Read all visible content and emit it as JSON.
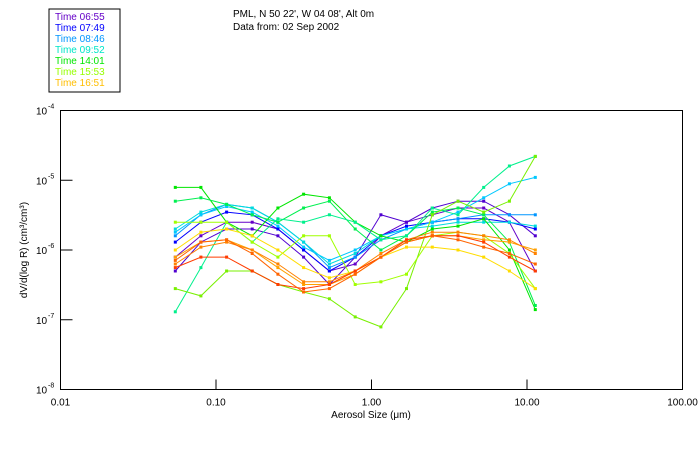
{
  "chart_data": {
    "type": "line",
    "title_lines": [
      "PML, N 50 22', W 04 08', Alt 0m",
      "Data from: 02 Sep 2002"
    ],
    "xlabel": "Aerosol Size (μm)",
    "ylabel": "dV/d(log R) (cm³/cm³)",
    "x_scale": "log",
    "y_scale": "log",
    "xlim": [
      0.01,
      100
    ],
    "ylim": [
      1e-08,
      0.0001
    ],
    "x_ticks": [
      {
        "value": 0.01,
        "label": "0.01"
      },
      {
        "value": 0.1,
        "label": "0.10"
      },
      {
        "value": 1,
        "label": "1.00"
      },
      {
        "value": 10,
        "label": "10.00"
      },
      {
        "value": 100,
        "label": "100.00"
      }
    ],
    "y_ticks": [
      {
        "value": 0.0001,
        "base": "10",
        "exp": "-4"
      },
      {
        "value": 1e-05,
        "base": "10",
        "exp": "-5"
      },
      {
        "value": 1e-06,
        "base": "10",
        "exp": "-6"
      },
      {
        "value": 1e-07,
        "base": "10",
        "exp": "-7"
      },
      {
        "value": 1e-08,
        "base": "10",
        "exp": "-8"
      }
    ],
    "legend": [
      {
        "label": "Time 06:55",
        "color": "#6400c8"
      },
      {
        "label": "Time 07:49",
        "color": "#0000ff"
      },
      {
        "label": "Time 08:46",
        "color": "#0096ff"
      },
      {
        "label": "Time 09:52",
        "color": "#00e6c8"
      },
      {
        "label": "Time 14:01",
        "color": "#00e600"
      },
      {
        "label": "Time 15:53",
        "color": "#96ff00"
      },
      {
        "label": "Time 16:51",
        "color": "#ffbe00"
      }
    ],
    "legend_position": "top-left",
    "x": [
      0.0547,
      0.08,
      0.117,
      0.171,
      0.25,
      0.366,
      0.536,
      0.785,
      1.15,
      1.68,
      2.46,
      3.6,
      5.27,
      7.71,
      11.3
    ],
    "series": [
      {
        "color": "#6400c8",
        "values": [
          7.9e-07,
          1.6e-06,
          2.5e-06,
          2.5e-06,
          2e-06,
          1e-06,
          5e-07,
          6.3e-07,
          1.6e-06,
          2.5e-06,
          3.2e-06,
          4e-06,
          4e-06,
          2.5e-06,
          5e-07
        ]
      },
      {
        "color": "#5000d0",
        "values": [
          5e-07,
          1.3e-06,
          2e-06,
          2e-06,
          1.6e-06,
          7.9e-07,
          3.2e-07,
          7.9e-07,
          3.2e-06,
          2.5e-06,
          4e-06,
          5e-06,
          5e-06,
          3.2e-06,
          1.6e-06
        ]
      },
      {
        "color": "#0000ff",
        "values": [
          1.3e-06,
          2.5e-06,
          3.5e-06,
          3.2e-06,
          2e-06,
          1e-06,
          5e-07,
          7.9e-07,
          1.6e-06,
          2.2e-06,
          2.5e-06,
          2.8e-06,
          2.8e-06,
          2.5e-06,
          2e-06
        ]
      },
      {
        "color": "#0096ff",
        "values": [
          1.6e-06,
          3.2e-06,
          4.5e-06,
          4e-06,
          2.5e-06,
          1.3e-06,
          5.6e-07,
          7.9e-07,
          1.4e-06,
          2e-06,
          2.5e-06,
          2.8e-06,
          3.2e-06,
          3.2e-06,
          3.2e-06
        ]
      },
      {
        "color": "#00dcdc",
        "values": [
          2e-06,
          3.5e-06,
          4.5e-06,
          4e-06,
          2.5e-06,
          1.3e-06,
          6.3e-07,
          8.9e-07,
          1.6e-06,
          2e-06,
          2.2e-06,
          2.5e-06,
          2.5e-06,
          2.5e-06,
          2.2e-06
        ]
      },
      {
        "color": "#00c8ff",
        "values": [
          1.8e-06,
          3.2e-06,
          4.2e-06,
          3.5e-06,
          2.2e-06,
          1.1e-06,
          7.1e-07,
          1e-06,
          1.6e-06,
          2e-06,
          2.5e-06,
          3.5e-06,
          5.6e-06,
          8.9e-06,
          1.1e-05
        ]
      },
      {
        "color": "#00e600",
        "values": [
          7.9e-06,
          7.9e-06,
          2.5e-06,
          1.6e-06,
          4e-06,
          6.3e-06,
          5.6e-06,
          2.5e-06,
          1.6e-06,
          1.3e-06,
          2e-06,
          2.2e-06,
          2.8e-06,
          1e-06,
          1.4e-07
        ]
      },
      {
        "color": "#00f050",
        "values": [
          5e-06,
          5.6e-06,
          4.5e-06,
          3.2e-06,
          2.5e-06,
          4e-06,
          5e-06,
          2e-06,
          1e-06,
          1.6e-06,
          3.5e-06,
          4e-06,
          3.2e-06,
          1.3e-06,
          1.6e-07
        ]
      },
      {
        "color": "#00f08c",
        "values": [
          1.3e-07,
          5.6e-07,
          2.5e-06,
          1.3e-06,
          2.8e-06,
          2.5e-06,
          3.2e-06,
          2.5e-06,
          1.4e-06,
          1.6e-06,
          4e-06,
          3.2e-06,
          7.9e-06,
          1.6e-05,
          2.2e-05
        ]
      },
      {
        "color": "#78f000",
        "values": [
          2.8e-07,
          2.2e-07,
          5e-07,
          5e-07,
          3.2e-07,
          2.5e-07,
          2e-07,
          1.1e-07,
          7.9e-08,
          2.8e-07,
          3.2e-06,
          5e-06,
          3.5e-06,
          5e-06,
          2.2e-05
        ]
      },
      {
        "color": "#a0ff00",
        "values": [
          2.5e-06,
          2.5e-06,
          2.5e-06,
          1.3e-06,
          7.9e-07,
          1.6e-06,
          1.6e-06,
          3.2e-07,
          3.5e-07,
          4.5e-07,
          1.6e-06,
          1.8e-06,
          1.6e-06,
          8.9e-07,
          2.8e-07
        ]
      },
      {
        "color": "#ffdc00",
        "values": [
          1e-06,
          1.8e-06,
          2e-06,
          1.6e-06,
          1e-06,
          5.6e-07,
          4e-07,
          5e-07,
          7.9e-07,
          1.1e-06,
          1.1e-06,
          1e-06,
          7.9e-07,
          5e-07,
          2.8e-07
        ]
      },
      {
        "color": "#ffa000",
        "values": [
          7.9e-07,
          1.3e-06,
          1.4e-06,
          1e-06,
          5.6e-07,
          3.2e-07,
          3.2e-07,
          4.5e-07,
          7.9e-07,
          1.3e-06,
          1.6e-06,
          1.6e-06,
          1.4e-06,
          1.3e-06,
          1e-06
        ]
      },
      {
        "color": "#ff8200",
        "values": [
          6.3e-07,
          1.1e-06,
          1.3e-06,
          1e-06,
          6.3e-07,
          3.5e-07,
          3.5e-07,
          5e-07,
          8.9e-07,
          1.4e-06,
          1.8e-06,
          1.8e-06,
          1.6e-06,
          1.4e-06,
          8.9e-07
        ]
      },
      {
        "color": "#ff3c00",
        "values": [
          5.6e-07,
          7.9e-07,
          7.9e-07,
          5e-07,
          3.2e-07,
          2.8e-07,
          3.2e-07,
          5e-07,
          7.9e-07,
          1.4e-06,
          1.6e-06,
          1.6e-06,
          1.3e-06,
          7.9e-07,
          5e-07
        ]
      },
      {
        "color": "#ff6400",
        "values": [
          7.1e-07,
          1.3e-06,
          1.4e-06,
          8.9e-07,
          4.5e-07,
          2.5e-07,
          2.8e-07,
          4.5e-07,
          7.9e-07,
          1.3e-06,
          1.6e-06,
          1.4e-06,
          1.1e-06,
          8.9e-07,
          6.3e-07
        ]
      }
    ]
  }
}
